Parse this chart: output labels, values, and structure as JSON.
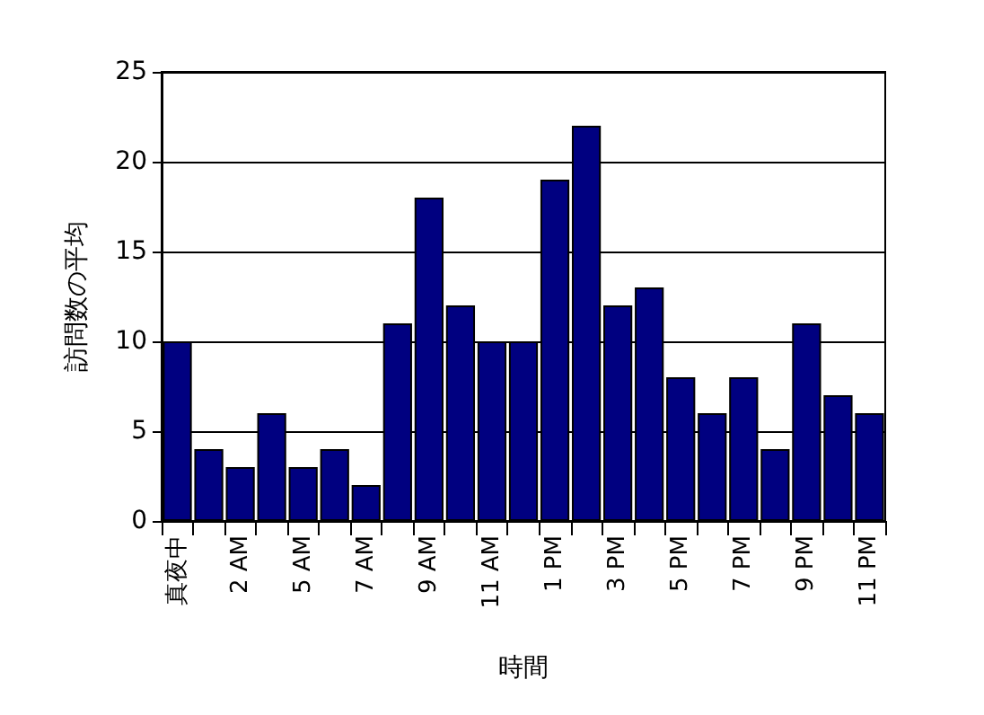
{
  "chart_data": {
    "type": "bar",
    "xlabel": "時間",
    "ylabel": "訪問数の平均",
    "categories": [
      "真夜中",
      null,
      "2 AM",
      null,
      "5 AM",
      null,
      "7 AM",
      null,
      "9 AM",
      null,
      "11 AM",
      null,
      "1 PM",
      null,
      "3 PM",
      null,
      "5 PM",
      null,
      "7 PM",
      null,
      "9 PM",
      null,
      "11 PM"
    ],
    "values": [
      10,
      4,
      3,
      6,
      3,
      4,
      2,
      11,
      18,
      12,
      10,
      10,
      19,
      22,
      12,
      13,
      8,
      6,
      8,
      4,
      11,
      7,
      6
    ],
    "color": "#000080",
    "ylim": [
      0,
      25
    ],
    "yticks": [
      0,
      5,
      10,
      15,
      20,
      25
    ],
    "grid": "y"
  }
}
